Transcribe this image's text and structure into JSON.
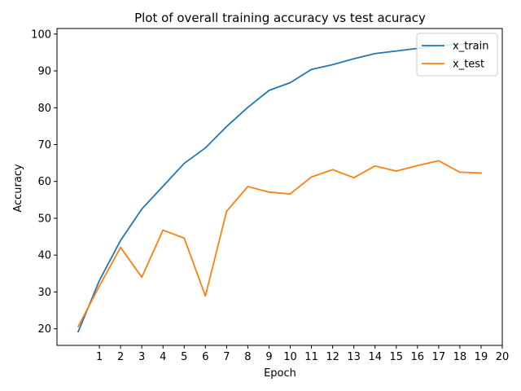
{
  "chart_data": {
    "type": "line",
    "title": "Plot of overall training accuracy vs test acuracy",
    "xlabel": "Epoch",
    "ylabel": "Accuracy",
    "xlim": [
      -1,
      20
    ],
    "ylim": [
      15.5,
      101.5
    ],
    "xticks": [
      1,
      2,
      3,
      4,
      5,
      6,
      7,
      8,
      9,
      10,
      11,
      12,
      13,
      14,
      15,
      16,
      17,
      18,
      19,
      20
    ],
    "yticks": [
      20,
      30,
      40,
      50,
      60,
      70,
      80,
      90,
      100
    ],
    "x": [
      0,
      1,
      2,
      3,
      4,
      5,
      6,
      7,
      8,
      9,
      10,
      11,
      12,
      13,
      14,
      15,
      16,
      17,
      18,
      19
    ],
    "series": [
      {
        "name": "x_train",
        "color": "#1f77b4",
        "values": [
          19.2,
          33.1,
          44.0,
          52.5,
          58.7,
          64.9,
          69.1,
          74.9,
          80.1,
          84.7,
          86.8,
          90.4,
          91.7,
          93.3,
          94.7,
          95.4,
          96.1,
          96.8,
          97.2,
          97.3
        ]
      },
      {
        "name": "x_test",
        "color": "#ff7f0e",
        "values": [
          20.6,
          31.6,
          42.1,
          34.0,
          46.8,
          44.6,
          28.9,
          51.9,
          58.6,
          57.1,
          56.6,
          61.2,
          63.2,
          61.0,
          64.2,
          62.8,
          64.3,
          65.6,
          62.5,
          62.3
        ]
      }
    ],
    "legend_position": "top-right",
    "grid": false
  }
}
